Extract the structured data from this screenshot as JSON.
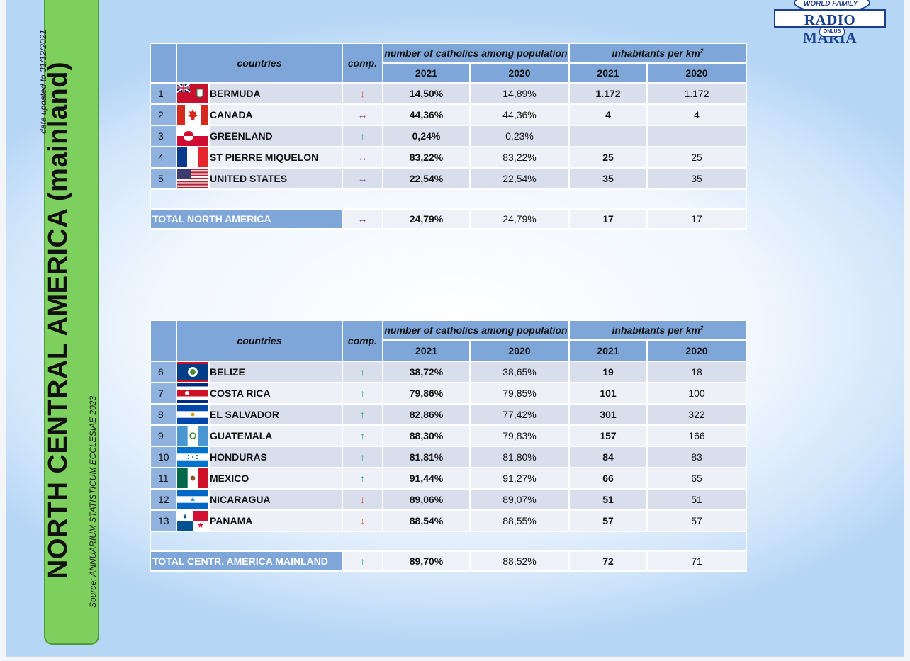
{
  "side": {
    "title": "NORTH CENTRAL AMERICA (mainland)",
    "source": "Source: ANNUARIUM STATISTICUM ECCLESIAE 2023",
    "updated": "data updated to 31/12/2021"
  },
  "logo": {
    "top": "WORLD FAMILY",
    "main": "RADIO MARIA",
    "sub": "ONLUS"
  },
  "headers": {
    "countries": "countries",
    "comp": "comp.",
    "catholics": "number of catholics among population",
    "inhabitants": "inhabitants per km",
    "inhabitants_sup": "2",
    "year1": "2021",
    "year2": "2020"
  },
  "north_america": {
    "rows": [
      {
        "num": "1",
        "flag": "bermuda-flag",
        "name": "BERMUDA",
        "trend": "down",
        "arrow": "↓",
        "cat2021": "14,50%",
        "cat2020": "14,89%",
        "inh2021": "1.172",
        "inh2020": "1.172"
      },
      {
        "num": "2",
        "flag": "canada-flag",
        "name": "CANADA",
        "trend": "same",
        "arrow": "↔",
        "cat2021": "44,36%",
        "cat2020": "44,36%",
        "inh2021": "4",
        "inh2020": "4"
      },
      {
        "num": "3",
        "flag": "greenland-flag",
        "name": "GREENLAND",
        "trend": "up",
        "arrow": "↑",
        "cat2021": "0,24%",
        "cat2020": "0,23%",
        "inh2021": "",
        "inh2020": ""
      },
      {
        "num": "4",
        "flag": "st-pierre-miquelon-flag",
        "name": "ST PIERRE MIQUELON",
        "trend": "same",
        "arrow": "↔",
        "cat2021": "83,22%",
        "cat2020": "83,22%",
        "inh2021": "25",
        "inh2020": "25"
      },
      {
        "num": "5",
        "flag": "united-states-flag",
        "name": "UNITED STATES",
        "trend": "same",
        "arrow": "↔",
        "cat2021": "22,54%",
        "cat2020": "22,54%",
        "inh2021": "35",
        "inh2020": "35"
      }
    ],
    "total": {
      "label": "TOTAL NORTH AMERICA",
      "trend": "same",
      "arrow": "↔",
      "cat2021": "24,79%",
      "cat2020": "24,79%",
      "inh2021": "17",
      "inh2020": "17"
    }
  },
  "central_america": {
    "rows": [
      {
        "num": "6",
        "flag": "belize-flag",
        "name": "BELIZE",
        "trend": "up",
        "arrow": "↑",
        "cat2021": "38,72%",
        "cat2020": "38,65%",
        "inh2021": "19",
        "inh2020": "18"
      },
      {
        "num": "7",
        "flag": "costa-rica-flag",
        "name": "COSTA RICA",
        "trend": "up",
        "arrow": "↑",
        "cat2021": "79,86%",
        "cat2020": "79,85%",
        "inh2021": "101",
        "inh2020": "100"
      },
      {
        "num": "8",
        "flag": "el-salvador-flag",
        "name": "EL SALVADOR",
        "trend": "up",
        "arrow": "↑",
        "cat2021": "82,86%",
        "cat2020": "77,42%",
        "inh2021": "301",
        "inh2020": "322"
      },
      {
        "num": "9",
        "flag": "guatemala-flag",
        "name": "GUATEMALA",
        "trend": "up",
        "arrow": "↑",
        "cat2021": "88,30%",
        "cat2020": "79,83%",
        "inh2021": "157",
        "inh2020": "166"
      },
      {
        "num": "10",
        "flag": "honduras-flag",
        "name": "HONDURAS",
        "trend": "up",
        "arrow": "↑",
        "cat2021": "81,81%",
        "cat2020": "81,80%",
        "inh2021": "84",
        "inh2020": "83"
      },
      {
        "num": "11",
        "flag": "mexico-flag",
        "name": "MEXICO",
        "trend": "up",
        "arrow": "↑",
        "cat2021": "91,44%",
        "cat2020": "91,27%",
        "inh2021": "66",
        "inh2020": "65"
      },
      {
        "num": "12",
        "flag": "nicaragua-flag",
        "name": "NICARAGUA",
        "trend": "down",
        "arrow": "↓",
        "cat2021": "89,06%",
        "cat2020": "89,07%",
        "inh2021": "51",
        "inh2020": "51"
      },
      {
        "num": "13",
        "flag": "panama-flag",
        "name": "PANAMA",
        "trend": "down",
        "arrow": "↓",
        "cat2021": "88,54%",
        "cat2020": "88,55%",
        "inh2021": "57",
        "inh2020": "57"
      }
    ],
    "total": {
      "label": "TOTAL CENTR. AMERICA MAINLAND",
      "trend": "up",
      "arrow": "↑",
      "cat2021": "89,70%",
      "cat2020": "88,52%",
      "inh2021": "72",
      "inh2020": "71"
    }
  },
  "colors": {
    "header_bg": "#7ea6d8",
    "row_dark": "#d8deec",
    "row_light": "#edf0f6",
    "panel_green": "#7ed05e",
    "arrow_up": "#2ea36a",
    "arrow_down": "#d94a32",
    "arrow_same": "#8a3fb8"
  }
}
